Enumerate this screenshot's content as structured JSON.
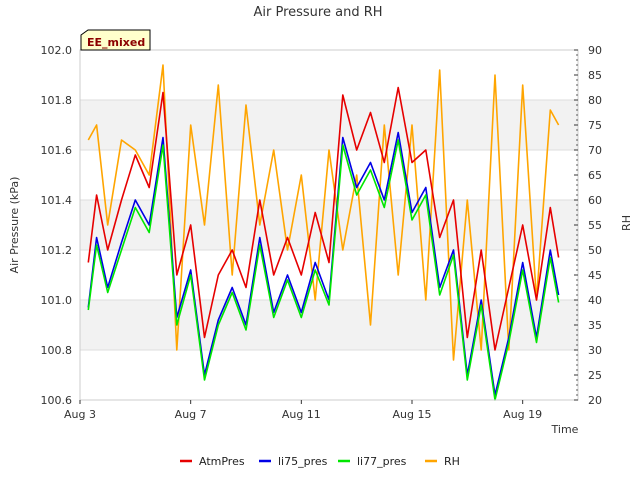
{
  "chart_data": {
    "type": "line",
    "title": "Air Pressure and RH",
    "badge": "EE_mixed",
    "xlabel": "Time",
    "ylabel": "Air Pressure (kPa)",
    "y2label": "RH",
    "x_ticks": [
      "Aug 3",
      "Aug 7",
      "Aug 11",
      "Aug 15",
      "Aug 19"
    ],
    "y_ticks": [
      "100.6",
      "100.8",
      "101.0",
      "101.2",
      "101.4",
      "101.6",
      "101.8",
      "102.0"
    ],
    "y2_ticks": [
      "20",
      "25",
      "30",
      "35",
      "40",
      "45",
      "50",
      "55",
      "60",
      "65",
      "70",
      "75",
      "80",
      "85",
      "90"
    ],
    "xlim_days": [
      3,
      21
    ],
    "ylim": [
      100.6,
      102.0
    ],
    "y2lim": [
      20,
      90
    ],
    "grid": "horizontal, alternating gray bands",
    "legend_position": "bottom-center",
    "x": [
      3.3,
      3.6,
      4.0,
      4.5,
      5.0,
      5.5,
      6.0,
      6.5,
      7.0,
      7.5,
      8.0,
      8.5,
      9.0,
      9.5,
      10.0,
      10.5,
      11.0,
      11.5,
      12.0,
      12.5,
      13.0,
      13.5,
      14.0,
      14.5,
      15.0,
      15.5,
      16.0,
      16.5,
      17.0,
      17.5,
      18.0,
      18.5,
      19.0,
      19.5,
      20.0,
      20.3
    ],
    "series": [
      {
        "name": "AtmPres",
        "axis": "left",
        "color": "#e60000",
        "values": [
          101.15,
          101.42,
          101.2,
          101.4,
          101.58,
          101.45,
          101.83,
          101.1,
          101.3,
          100.85,
          101.1,
          101.2,
          101.05,
          101.4,
          101.1,
          101.25,
          101.1,
          101.35,
          101.15,
          101.82,
          101.6,
          101.75,
          101.55,
          101.85,
          101.55,
          101.6,
          101.25,
          101.4,
          100.85,
          101.2,
          100.8,
          101.05,
          101.3,
          101.0,
          101.37,
          101.17
        ]
      },
      {
        "name": "li75_pres",
        "axis": "left",
        "color": "#0000e6",
        "values": [
          100.97,
          101.25,
          101.05,
          101.23,
          101.4,
          101.3,
          101.65,
          100.93,
          101.12,
          100.7,
          100.92,
          101.05,
          100.9,
          101.25,
          100.95,
          101.1,
          100.95,
          101.15,
          101.0,
          101.65,
          101.45,
          101.55,
          101.4,
          101.67,
          101.35,
          101.45,
          101.05,
          101.2,
          100.7,
          101.0,
          100.62,
          100.85,
          101.15,
          100.85,
          101.2,
          101.02
        ]
      },
      {
        "name": "li77_pres",
        "axis": "left",
        "color": "#00e600",
        "values": [
          100.96,
          101.22,
          101.03,
          101.2,
          101.37,
          101.27,
          101.62,
          100.9,
          101.1,
          100.68,
          100.9,
          101.03,
          100.88,
          101.22,
          100.93,
          101.08,
          100.93,
          101.12,
          100.98,
          101.62,
          101.42,
          101.52,
          101.37,
          101.64,
          101.32,
          101.42,
          101.02,
          101.18,
          100.68,
          100.98,
          100.6,
          100.83,
          101.12,
          100.83,
          101.17,
          100.99
        ]
      },
      {
        "name": "RH",
        "axis": "right",
        "color": "#ffa500",
        "values": [
          72,
          75,
          55,
          72,
          70,
          65,
          87,
          30,
          75,
          55,
          83,
          45,
          79,
          55,
          70,
          50,
          65,
          40,
          70,
          50,
          65,
          35,
          75,
          45,
          75,
          40,
          86,
          28,
          60,
          30,
          85,
          30,
          83,
          40,
          78,
          75
        ]
      }
    ]
  }
}
